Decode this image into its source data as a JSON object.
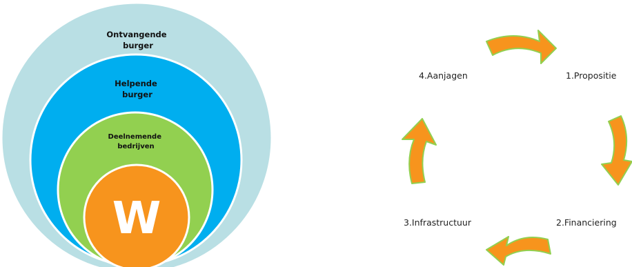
{
  "rings": {
    "outer": {
      "label_lines": [
        "Ontvangende",
        "burger"
      ],
      "color": "#b9dfe4"
    },
    "second": {
      "label_lines": [
        "Helpende",
        "burger"
      ],
      "color": "#00aeef"
    },
    "third": {
      "label_lines": [
        "Deelnemende",
        "bedrijven"
      ],
      "color": "#92d050"
    },
    "core": {
      "letter": "W",
      "color": "#f7941d"
    }
  },
  "cycle": {
    "steps": [
      {
        "label": "1.Propositie"
      },
      {
        "label": "2.Financiering"
      },
      {
        "label": "3.Infrastructuur"
      },
      {
        "label": "4.Aanjagen"
      }
    ],
    "arrow_fill": "#f7941d",
    "arrow_outline": "#92d050"
  }
}
